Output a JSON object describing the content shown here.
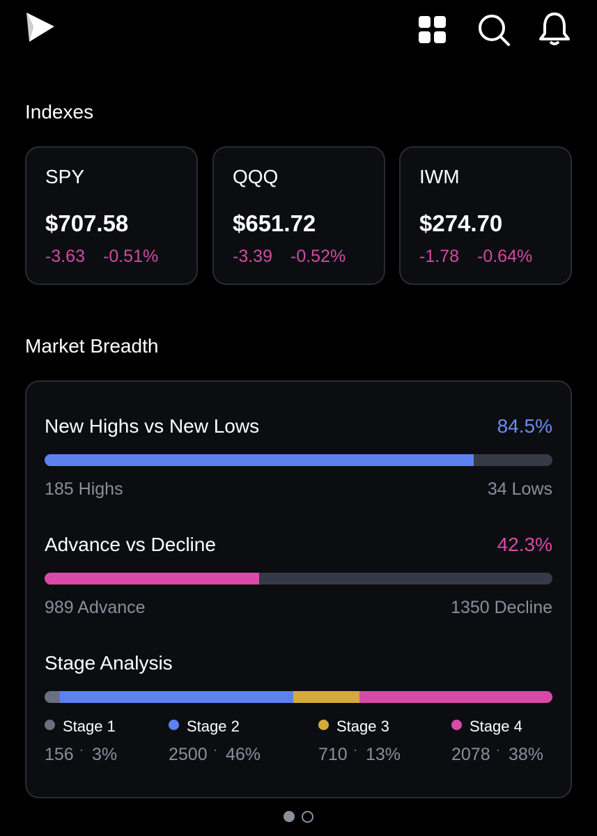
{
  "indexes": {
    "title": "Indexes",
    "cards": [
      {
        "symbol": "SPY",
        "price": "$707.58",
        "change": "-3.63",
        "change_percent": "-0.51%"
      },
      {
        "symbol": "QQQ",
        "price": "$651.72",
        "change": "-3.39",
        "change_percent": "-0.52%"
      },
      {
        "symbol": "IWM",
        "price": "$274.70",
        "change": "-1.78",
        "change_percent": "-0.64%"
      }
    ]
  },
  "market_breadth": {
    "title": "Market Breadth",
    "metrics": [
      {
        "label": "New Highs vs New Lows",
        "value": 84.5,
        "value_label": "84.5%",
        "left": "185 Highs",
        "right": "34 Lows"
      },
      {
        "label": "Advance vs Decline",
        "value": 42.3,
        "value_label": "42.3%",
        "left": "989 Advance",
        "right": "1350 Decline"
      }
    ],
    "stage_analysis": {
      "title": "Stage Analysis",
      "stages": [
        {
          "name": "Stage 1",
          "count": 156,
          "percent": 3,
          "percent_label": "3%"
        },
        {
          "name": "Stage 2",
          "count": 2500,
          "percent": 46,
          "percent_label": "46%"
        },
        {
          "name": "Stage 3",
          "count": 710,
          "percent": 13,
          "percent_label": "13%"
        },
        {
          "name": "Stage 4",
          "count": 2078,
          "percent": 38,
          "percent_label": "38%"
        }
      ]
    }
  }
}
